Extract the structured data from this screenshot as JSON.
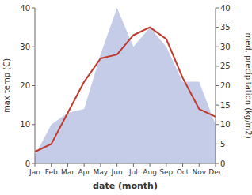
{
  "chart_data": {
    "type": "line",
    "categories": [
      "Jan",
      "Feb",
      "Mar",
      "Apr",
      "May",
      "Jun",
      "Jul",
      "Aug",
      "Sep",
      "Oct",
      "Nov",
      "Dec"
    ],
    "xlabel": "date (month)",
    "ylabel": "max temp (C)",
    "y2label": "med. precipitation (kg/m2)",
    "ylim": [
      0,
      40
    ],
    "yticks": [
      0,
      10,
      20,
      30,
      40
    ],
    "y2lim": [
      0,
      40
    ],
    "y2ticks": [
      0,
      5,
      10,
      15,
      20,
      25,
      30,
      35,
      40
    ],
    "series": [
      {
        "type": "area",
        "axis": "y2",
        "color": "#c5cce8",
        "values": [
          2,
          10,
          13,
          14,
          28,
          40,
          30,
          35,
          30,
          21,
          21,
          10
        ]
      },
      {
        "type": "line",
        "axis": "y",
        "color": "#c0392b",
        "values": [
          3,
          5,
          13,
          21,
          27,
          28,
          33,
          35,
          32,
          22,
          14,
          12
        ]
      }
    ]
  }
}
